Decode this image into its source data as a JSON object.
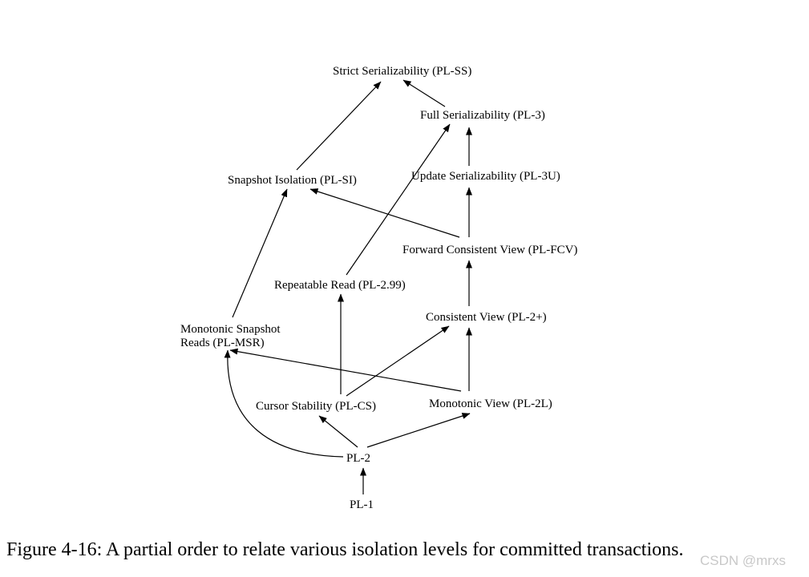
{
  "diagram": {
    "nodes": {
      "pl_ss": "Strict Serializability (PL-SS)",
      "pl_3": "Full Serializability (PL-3)",
      "pl_si": "Snapshot Isolation (PL-SI)",
      "pl_3u": "Update Serializability (PL-3U)",
      "pl_fcv": "Forward Consistent View (PL-FCV)",
      "pl_299": "Repeatable Read (PL-2.99)",
      "pl_2plus": "Consistent View (PL-2+)",
      "pl_msr_line1": "Monotonic Snapshot",
      "pl_msr_line2": "Reads (PL-MSR)",
      "pl_cs": "Cursor Stability (PL-CS)",
      "pl_2l": "Monotonic View (PL-2L)",
      "pl_2": "PL-2",
      "pl_1": "PL-1"
    },
    "edges": [
      {
        "from": "pl_3",
        "to": "pl_ss"
      },
      {
        "from": "pl_si",
        "to": "pl_ss"
      },
      {
        "from": "pl_3u",
        "to": "pl_3"
      },
      {
        "from": "pl_299",
        "to": "pl_3"
      },
      {
        "from": "pl_fcv",
        "to": "pl_3u"
      },
      {
        "from": "pl_fcv",
        "to": "pl_si"
      },
      {
        "from": "pl_msr",
        "to": "pl_si"
      },
      {
        "from": "pl_2plus",
        "to": "pl_fcv"
      },
      {
        "from": "pl_cs",
        "to": "pl_299"
      },
      {
        "from": "pl_cs",
        "to": "pl_2plus"
      },
      {
        "from": "pl_2l",
        "to": "pl_2plus"
      },
      {
        "from": "pl_2l",
        "to": "pl_msr"
      },
      {
        "from": "pl_2",
        "to": "pl_cs"
      },
      {
        "from": "pl_2",
        "to": "pl_2l"
      },
      {
        "from": "pl_2",
        "to": "pl_msr"
      },
      {
        "from": "pl_1",
        "to": "pl_2"
      }
    ]
  },
  "caption": "Figure 4-16:  A partial order to relate various isolation levels for committed transactions.",
  "watermark": "CSDN @mrxs"
}
